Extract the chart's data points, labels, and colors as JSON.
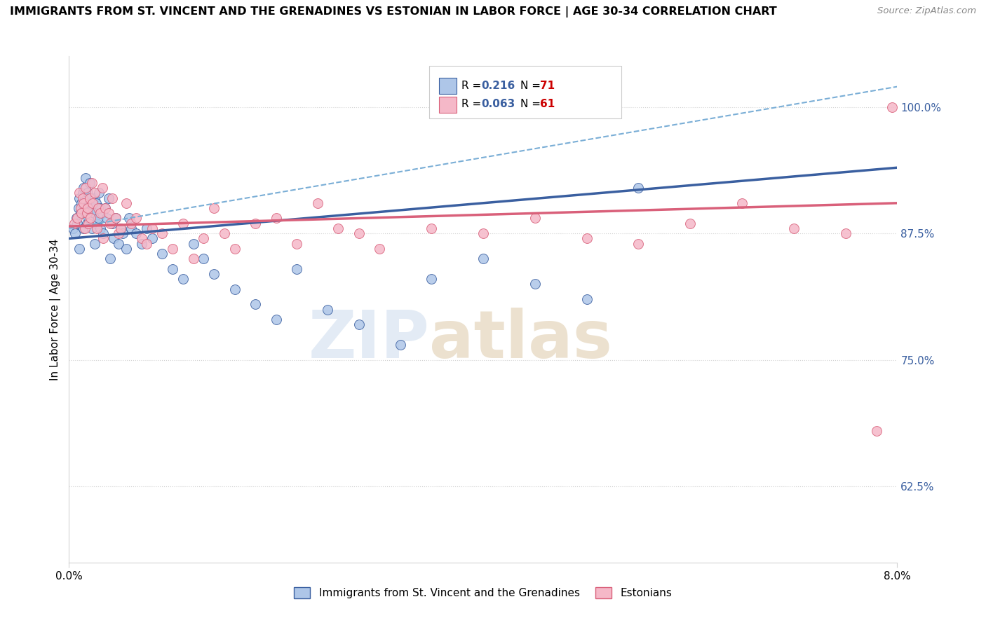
{
  "title": "IMMIGRANTS FROM ST. VINCENT AND THE GRENADINES VS ESTONIAN IN LABOR FORCE | AGE 30-34 CORRELATION CHART",
  "source": "Source: ZipAtlas.com",
  "ylabel": "In Labor Force | Age 30-34",
  "legend_blue_r": "R = 0.216",
  "legend_blue_n": "N = 71",
  "legend_pink_r": "R = 0.063",
  "legend_pink_n": "N = 61",
  "legend_label_blue": "Immigrants from St. Vincent and the Grenadines",
  "legend_label_pink": "Estonians",
  "blue_color": "#aec6e8",
  "pink_color": "#f5b8c8",
  "trend_blue_color": "#3a5fa0",
  "trend_pink_color": "#d9607a",
  "trend_dashed_color": "#7aaed6",
  "xlim": [
    0.0,
    8.0
  ],
  "ylim": [
    55.0,
    105.0
  ],
  "yticks": [
    62.5,
    75.0,
    87.5,
    100.0
  ],
  "blue_x": [
    0.04,
    0.06,
    0.07,
    0.08,
    0.09,
    0.1,
    0.1,
    0.11,
    0.12,
    0.13,
    0.14,
    0.14,
    0.15,
    0.15,
    0.16,
    0.16,
    0.17,
    0.17,
    0.18,
    0.19,
    0.2,
    0.2,
    0.21,
    0.22,
    0.23,
    0.24,
    0.25,
    0.25,
    0.26,
    0.27,
    0.28,
    0.29,
    0.3,
    0.3,
    0.32,
    0.33,
    0.35,
    0.36,
    0.38,
    0.4,
    0.42,
    0.43,
    0.45,
    0.48,
    0.5,
    0.52,
    0.55,
    0.58,
    0.6,
    0.65,
    0.7,
    0.75,
    0.8,
    0.9,
    1.0,
    1.1,
    1.2,
    1.3,
    1.4,
    1.6,
    1.8,
    2.0,
    2.2,
    2.5,
    2.8,
    3.2,
    3.5,
    4.0,
    4.5,
    5.0,
    5.5
  ],
  "blue_y": [
    88.0,
    87.5,
    89.0,
    88.5,
    90.0,
    91.0,
    86.0,
    89.5,
    90.5,
    91.5,
    88.0,
    92.0,
    90.0,
    91.0,
    89.5,
    93.0,
    90.0,
    88.5,
    91.5,
    89.0,
    90.5,
    92.5,
    91.0,
    88.0,
    90.0,
    89.5,
    91.0,
    86.5,
    90.5,
    88.5,
    89.0,
    91.5,
    90.0,
    88.0,
    89.5,
    87.5,
    90.0,
    89.0,
    91.0,
    85.0,
    88.5,
    87.0,
    89.0,
    86.5,
    88.0,
    87.5,
    86.0,
    89.0,
    88.0,
    87.5,
    86.5,
    88.0,
    87.0,
    85.5,
    84.0,
    83.0,
    86.5,
    85.0,
    83.5,
    82.0,
    80.5,
    79.0,
    84.0,
    80.0,
    78.5,
    76.5,
    83.0,
    85.0,
    82.5,
    81.0,
    92.0
  ],
  "pink_x": [
    0.05,
    0.08,
    0.1,
    0.11,
    0.12,
    0.13,
    0.14,
    0.15,
    0.16,
    0.17,
    0.18,
    0.19,
    0.2,
    0.21,
    0.22,
    0.23,
    0.25,
    0.27,
    0.28,
    0.3,
    0.32,
    0.33,
    0.35,
    0.38,
    0.4,
    0.42,
    0.45,
    0.48,
    0.5,
    0.55,
    0.6,
    0.65,
    0.7,
    0.75,
    0.8,
    0.9,
    1.0,
    1.1,
    1.2,
    1.3,
    1.4,
    1.5,
    1.6,
    1.8,
    2.0,
    2.2,
    2.4,
    2.6,
    2.8,
    3.0,
    3.5,
    4.0,
    4.5,
    5.0,
    5.5,
    6.0,
    6.5,
    7.0,
    7.5,
    7.8,
    7.95
  ],
  "pink_y": [
    88.5,
    89.0,
    91.5,
    90.0,
    89.5,
    91.0,
    90.5,
    88.0,
    92.0,
    89.5,
    90.0,
    88.5,
    91.0,
    89.0,
    92.5,
    90.5,
    91.5,
    88.0,
    90.0,
    89.5,
    92.0,
    87.0,
    90.0,
    89.5,
    88.5,
    91.0,
    89.0,
    87.5,
    88.0,
    90.5,
    88.5,
    89.0,
    87.0,
    86.5,
    88.0,
    87.5,
    86.0,
    88.5,
    85.0,
    87.0,
    90.0,
    87.5,
    86.0,
    88.5,
    89.0,
    86.5,
    90.5,
    88.0,
    87.5,
    86.0,
    88.0,
    87.5,
    89.0,
    87.0,
    86.5,
    88.5,
    90.5,
    88.0,
    87.5,
    68.0,
    100.0
  ]
}
